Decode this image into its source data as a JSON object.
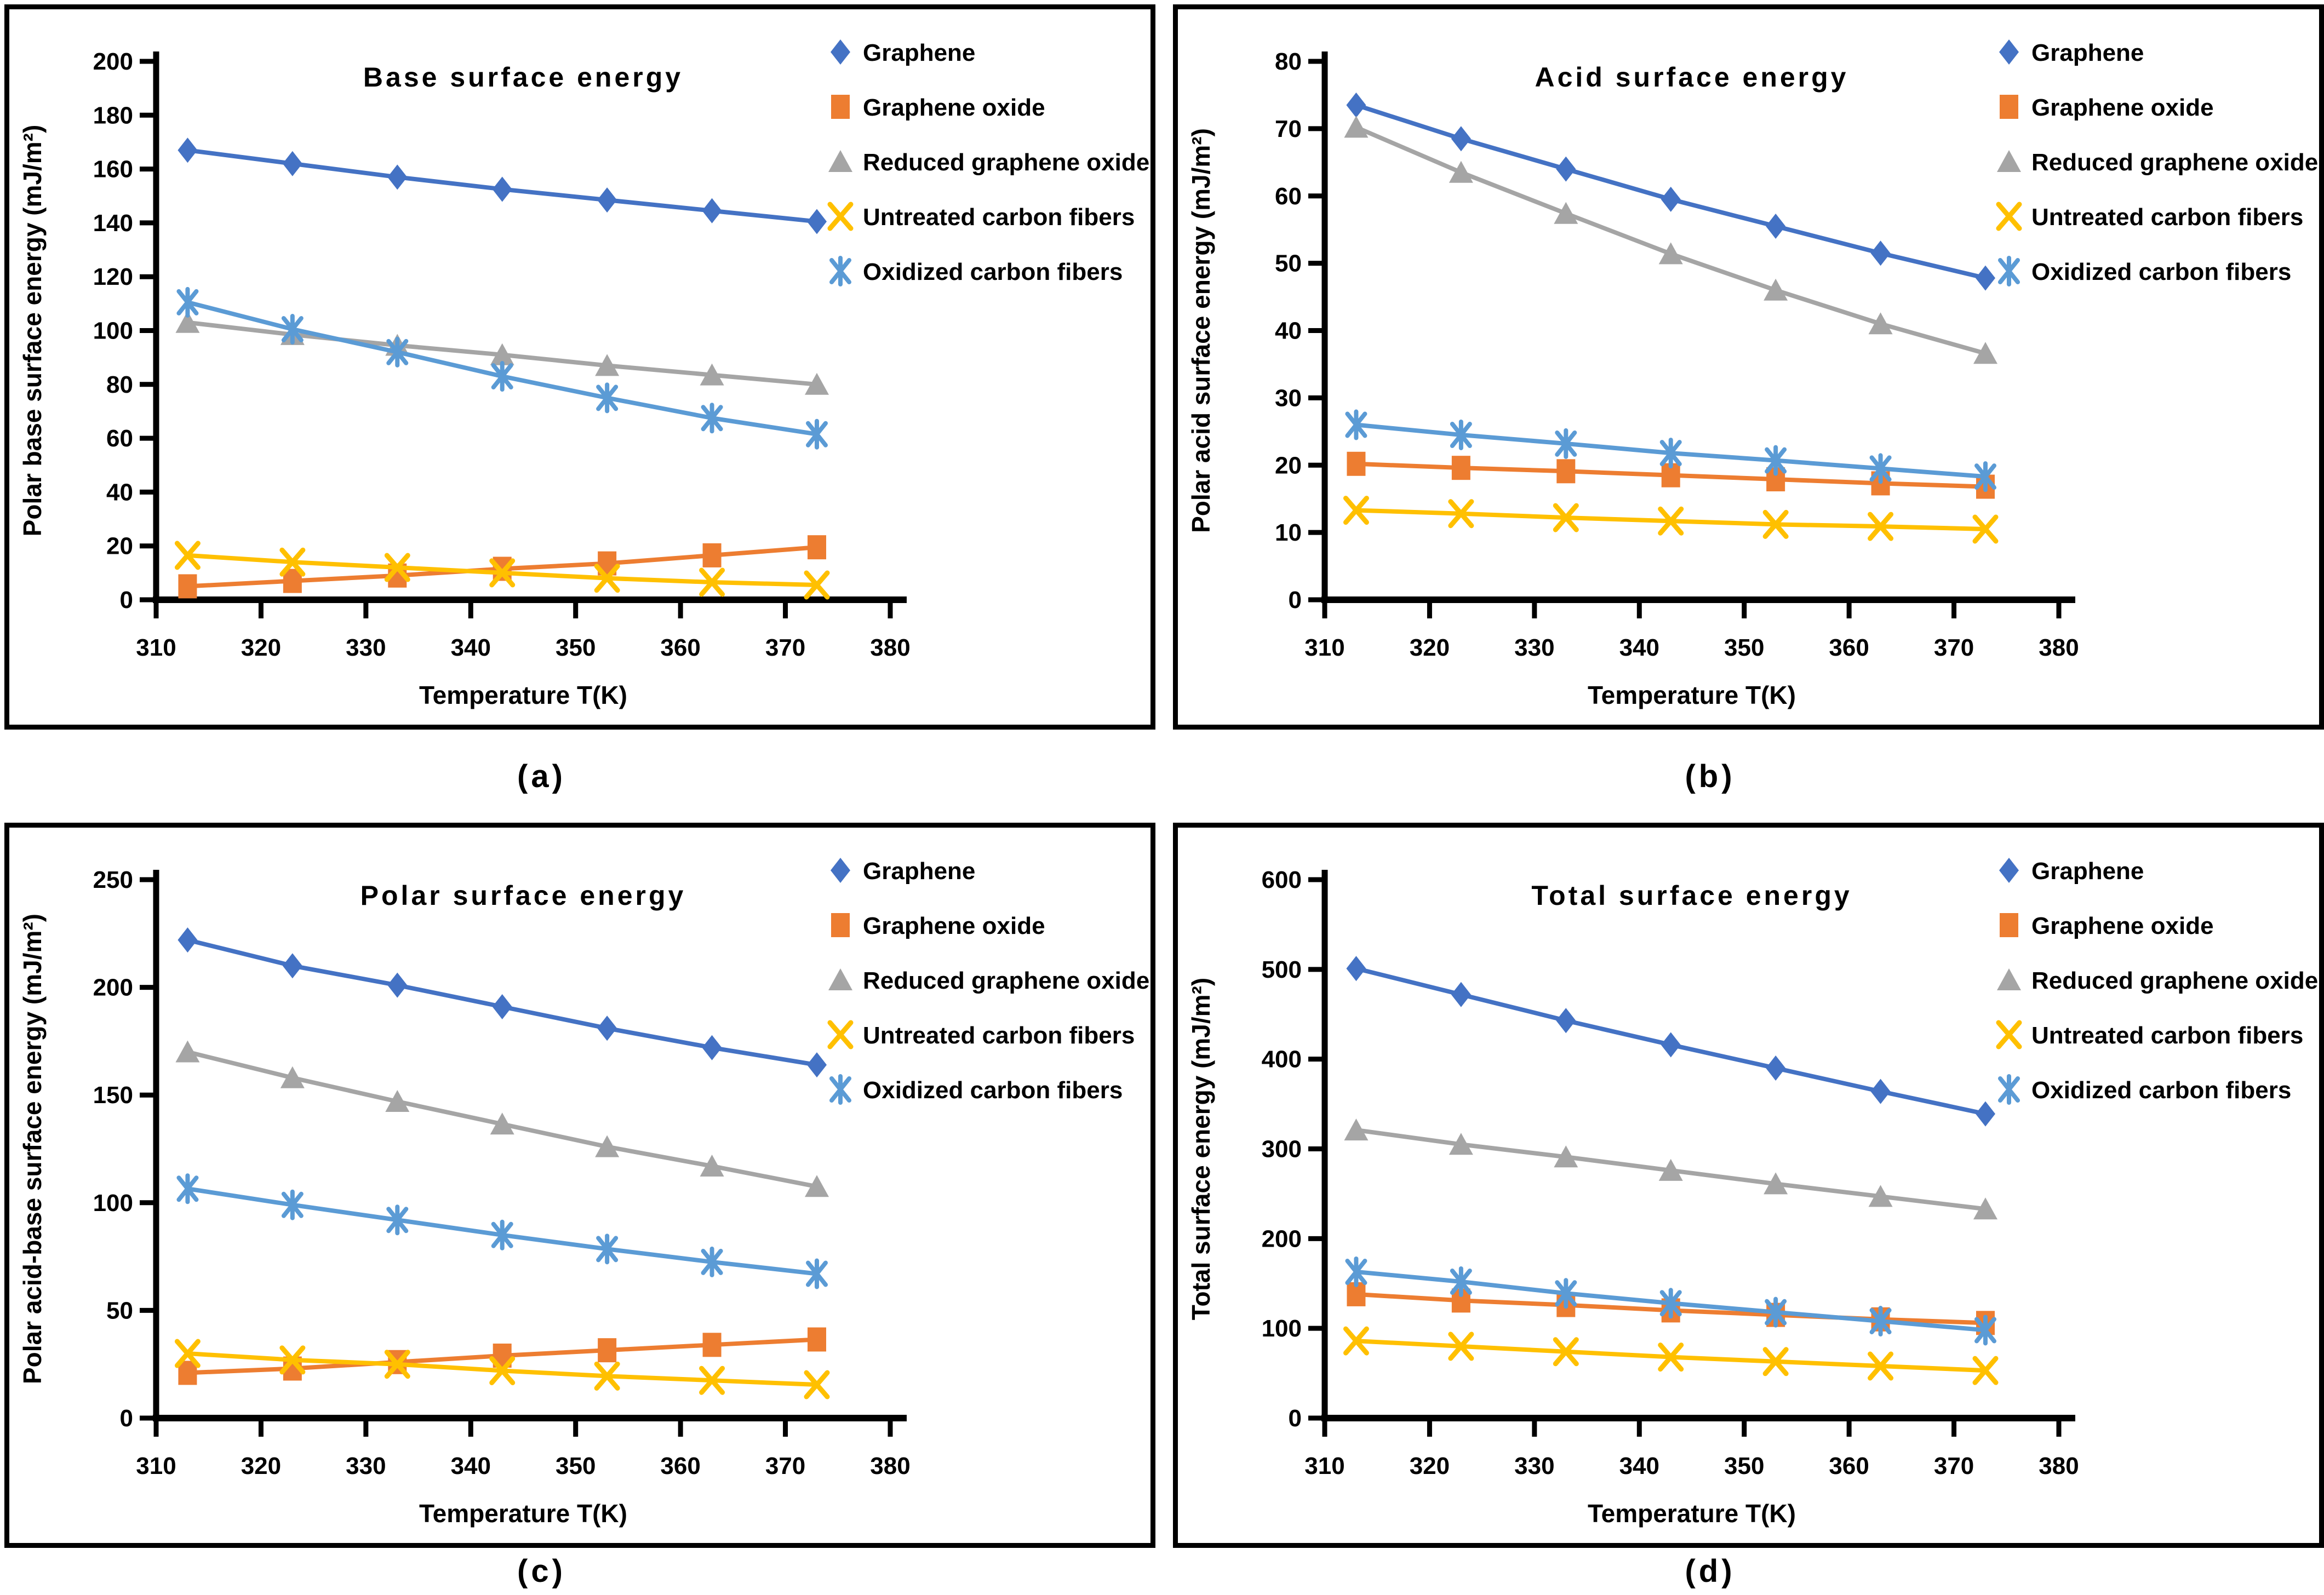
{
  "chart_data": [
    {
      "panel_label": "(a)",
      "type": "line",
      "title": "Base surface energy",
      "xlabel": "Temperature T(K)",
      "ylabel": "Polar base surface energy (mJ/m²)",
      "xlim": [
        310,
        380
      ],
      "ylim": [
        0,
        200
      ],
      "xticks": [
        310,
        320,
        330,
        340,
        350,
        360,
        370,
        380
      ],
      "yticks": [
        0,
        20,
        40,
        60,
        80,
        100,
        120,
        140,
        160,
        180,
        200
      ],
      "grid": false,
      "legend_position": "top-right",
      "x": [
        313,
        323,
        333,
        343,
        353,
        363,
        373
      ],
      "series": [
        {
          "name": "Graphene",
          "color": "#4472C4",
          "marker": "diamond",
          "values": [
            167,
            162,
            157,
            152.5,
            148.5,
            144.5,
            140.5
          ]
        },
        {
          "name": "Graphene oxide",
          "color": "#ED7D31",
          "marker": "square",
          "values": [
            5,
            7,
            9,
            11.5,
            13.5,
            16.5,
            19.5
          ]
        },
        {
          "name": "Reduced graphene oxide",
          "color": "#A5A5A5",
          "marker": "triangle",
          "values": [
            103,
            98.5,
            94.5,
            91,
            87,
            83.5,
            80
          ]
        },
        {
          "name": "Untreated carbon fibers",
          "color": "#FFC000",
          "marker": "x",
          "values": [
            16.5,
            14,
            12,
            10,
            8,
            6.5,
            5.5
          ]
        },
        {
          "name": "Oxidized carbon fibers",
          "color": "#5B9BD5",
          "marker": "asterisk",
          "values": [
            110.5,
            100.5,
            92,
            83,
            75,
            67.5,
            61.5
          ]
        }
      ]
    },
    {
      "panel_label": "(b)",
      "type": "line",
      "title": "Acid surface energy",
      "xlabel": "Temperature T(K)",
      "ylabel": "Polar acid surface energy (mJ/m²)",
      "xlim": [
        310,
        380
      ],
      "ylim": [
        0,
        80
      ],
      "xticks": [
        310,
        320,
        330,
        340,
        350,
        360,
        370,
        380
      ],
      "yticks": [
        0,
        10,
        20,
        30,
        40,
        50,
        60,
        70,
        80
      ],
      "grid": false,
      "legend_position": "top-right",
      "x": [
        313,
        323,
        333,
        343,
        353,
        363,
        373
      ],
      "series": [
        {
          "name": "Graphene",
          "color": "#4472C4",
          "marker": "diamond",
          "values": [
            73.5,
            68.5,
            64,
            59.5,
            55.5,
            51.5,
            47.8
          ]
        },
        {
          "name": "Graphene oxide",
          "color": "#ED7D31",
          "marker": "square",
          "values": [
            20.2,
            19.6,
            19.1,
            18.5,
            17.9,
            17.3,
            16.8
          ]
        },
        {
          "name": "Reduced graphene oxide",
          "color": "#A5A5A5",
          "marker": "triangle",
          "values": [
            70.2,
            63.5,
            57.4,
            51.4,
            46,
            41,
            36.6
          ]
        },
        {
          "name": "Untreated carbon fibers",
          "color": "#FFC000",
          "marker": "x",
          "values": [
            13.3,
            12.8,
            12.2,
            11.7,
            11.2,
            10.9,
            10.5
          ]
        },
        {
          "name": "Oxidized carbon fibers",
          "color": "#5B9BD5",
          "marker": "asterisk",
          "values": [
            26,
            24.5,
            23.2,
            21.8,
            20.7,
            19.5,
            18.3
          ]
        }
      ]
    },
    {
      "panel_label": "(c)",
      "type": "line",
      "title": "Polar surface energy",
      "xlabel": "Temperature T(K)",
      "ylabel": "Polar acid-base surface energy (mJ/m²)",
      "xlim": [
        310,
        380
      ],
      "ylim": [
        0,
        250
      ],
      "xticks": [
        310,
        320,
        330,
        340,
        350,
        360,
        370,
        380
      ],
      "yticks": [
        0,
        50,
        100,
        150,
        200,
        250
      ],
      "grid": false,
      "legend_position": "top-right",
      "x": [
        313,
        323,
        333,
        343,
        353,
        363,
        373
      ],
      "series": [
        {
          "name": "Graphene",
          "color": "#4472C4",
          "marker": "diamond",
          "values": [
            222,
            210,
            201,
            191,
            181,
            172,
            164
          ]
        },
        {
          "name": "Graphene oxide",
          "color": "#ED7D31",
          "marker": "square",
          "values": [
            21,
            23,
            26,
            29,
            31.5,
            34,
            36.5
          ]
        },
        {
          "name": "Reduced graphene oxide",
          "color": "#A5A5A5",
          "marker": "triangle",
          "values": [
            170,
            158,
            147,
            136.5,
            126,
            117,
            107.5
          ]
        },
        {
          "name": "Untreated carbon fibers",
          "color": "#FFC000",
          "marker": "x",
          "values": [
            30,
            27,
            25,
            22,
            19.5,
            17.5,
            15.5
          ]
        },
        {
          "name": "Oxidized carbon fibers",
          "color": "#5B9BD5",
          "marker": "asterisk",
          "values": [
            106.5,
            99,
            92,
            85,
            78.5,
            72.5,
            67
          ]
        }
      ]
    },
    {
      "panel_label": "(d)",
      "type": "line",
      "title": "Total surface energy",
      "xlabel": "Temperature T(K)",
      "ylabel": "Total surface energy (mJ/m²)",
      "xlim": [
        310,
        380
      ],
      "ylim": [
        0,
        600
      ],
      "xticks": [
        310,
        320,
        330,
        340,
        350,
        360,
        370,
        380
      ],
      "yticks": [
        0,
        100,
        200,
        300,
        400,
        500,
        600
      ],
      "grid": false,
      "legend_position": "top-right",
      "x": [
        313,
        323,
        333,
        343,
        353,
        363,
        373
      ],
      "series": [
        {
          "name": "Graphene",
          "color": "#4472C4",
          "marker": "diamond",
          "values": [
            501,
            472,
            443,
            416,
            390,
            364,
            339
          ]
        },
        {
          "name": "Graphene oxide",
          "color": "#ED7D31",
          "marker": "square",
          "values": [
            138,
            131,
            126,
            120,
            115,
            110,
            106
          ]
        },
        {
          "name": "Reduced graphene oxide",
          "color": "#A5A5A5",
          "marker": "triangle",
          "values": [
            321,
            305,
            291,
            276,
            261,
            247,
            233
          ]
        },
        {
          "name": "Untreated carbon fibers",
          "color": "#FFC000",
          "marker": "x",
          "values": [
            86,
            80,
            74,
            68,
            63,
            58,
            53
          ]
        },
        {
          "name": "Oxidized carbon fibers",
          "color": "#5B9BD5",
          "marker": "asterisk",
          "values": [
            163,
            152,
            139,
            128,
            118,
            108,
            98
          ]
        }
      ]
    }
  ]
}
